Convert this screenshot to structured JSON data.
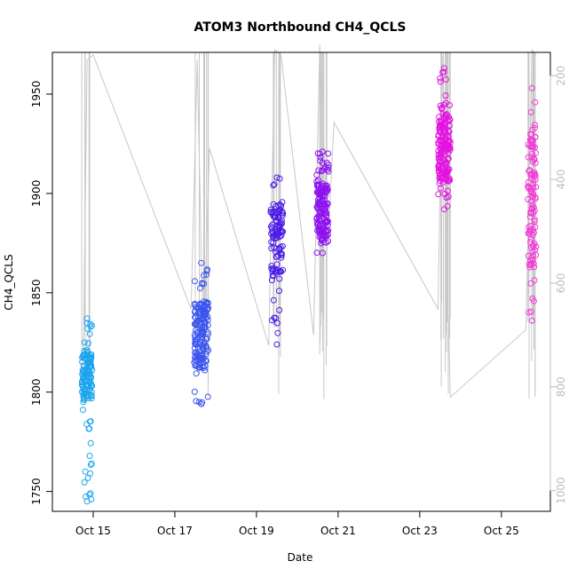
{
  "chart_data": {
    "type": "scatter",
    "title": "ATOM3 Northbound CH4_QCLS",
    "xlabel": "Date",
    "ylabel": "CH4_QCLS",
    "x_ticks": [
      "Oct 15",
      "Oct 17",
      "Oct 19",
      "Oct 21",
      "Oct 23",
      "Oct 25"
    ],
    "x_tick_days": [
      15,
      17,
      19,
      21,
      23,
      25
    ],
    "xlim_days": [
      14.0,
      26.2
    ],
    "ylim": [
      1740,
      1971
    ],
    "y_ticks": [
      1750,
      1800,
      1850,
      1900,
      1950
    ],
    "right_axis": {
      "ticks": [
        200,
        400,
        600,
        800,
        1000
      ],
      "range_bottom_to_top": [
        1040,
        155
      ],
      "color": "#bdbdbd"
    },
    "grid": false,
    "colors": {
      "point_gradient": [
        "#1aa4ee",
        "#3a55ee",
        "#4a1ae6",
        "#8e12f0",
        "#e312e0",
        "#f23ad6"
      ],
      "altitude_line": "#c8c8c8"
    },
    "series": [
      {
        "x_center": 14.85,
        "x_spread": 0.25,
        "y_min": 1745,
        "y_max": 1837,
        "y_core": [
          1795,
          1820
        ],
        "count": 130,
        "color": "#1aa4ee"
      },
      {
        "x_center": 17.65,
        "x_spread": 0.35,
        "y_min": 1794,
        "y_max": 1865,
        "y_core": [
          1812,
          1845
        ],
        "count": 170,
        "color": "#3a55ee"
      },
      {
        "x_center": 19.5,
        "x_spread": 0.3,
        "y_min": 1824,
        "y_max": 1908,
        "y_core": [
          1860,
          1895
        ],
        "count": 110,
        "color": "#4a1ae6"
      },
      {
        "x_center": 20.62,
        "x_spread": 0.3,
        "y_min": 1870,
        "y_max": 1921,
        "y_core": [
          1876,
          1905
        ],
        "count": 150,
        "color": "#8e12f0"
      },
      {
        "x_center": 23.6,
        "x_spread": 0.3,
        "y_min": 1892,
        "y_max": 1963,
        "y_core": [
          1905,
          1940
        ],
        "count": 170,
        "color": "#e312e0"
      },
      {
        "x_center": 25.75,
        "x_spread": 0.2,
        "y_min": 1836,
        "y_max": 1953,
        "y_core": [
          1860,
          1935
        ],
        "count": 110,
        "color": "#f23ad6"
      }
    ]
  }
}
